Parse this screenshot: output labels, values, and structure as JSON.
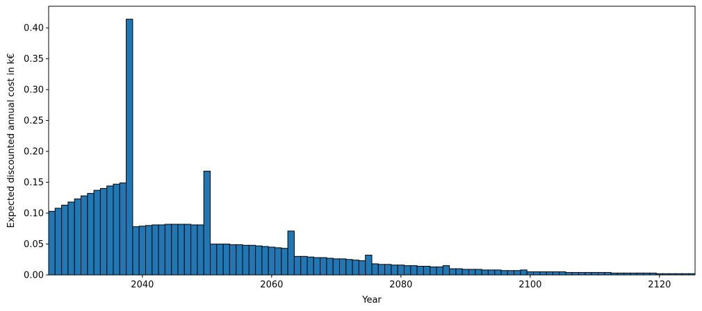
{
  "chart_data": {
    "type": "bar",
    "title": "",
    "xlabel": "Year",
    "ylabel": "Expected discounted annual cost in k€",
    "xlim": [
      2025.5,
      2125.5
    ],
    "ylim": [
      0,
      0.435
    ],
    "x_ticks": [
      2040,
      2060,
      2080,
      2100,
      2120
    ],
    "y_ticks": [
      0.0,
      0.05,
      0.1,
      0.15,
      0.2,
      0.25,
      0.3,
      0.35,
      0.4
    ],
    "grid": false,
    "bar_color": "#1f77b4",
    "edge_color": "#000000",
    "x": [
      2026,
      2027,
      2028,
      2029,
      2030,
      2031,
      2032,
      2033,
      2034,
      2035,
      2036,
      2037,
      2038,
      2039,
      2040,
      2041,
      2042,
      2043,
      2044,
      2045,
      2046,
      2047,
      2048,
      2049,
      2050,
      2051,
      2052,
      2053,
      2054,
      2055,
      2056,
      2057,
      2058,
      2059,
      2060,
      2061,
      2062,
      2063,
      2064,
      2065,
      2066,
      2067,
      2068,
      2069,
      2070,
      2071,
      2072,
      2073,
      2074,
      2075,
      2076,
      2077,
      2078,
      2079,
      2080,
      2081,
      2082,
      2083,
      2084,
      2085,
      2086,
      2087,
      2088,
      2089,
      2090,
      2091,
      2092,
      2093,
      2094,
      2095,
      2096,
      2097,
      2098,
      2099,
      2100,
      2101,
      2102,
      2103,
      2104,
      2105,
      2106,
      2107,
      2108,
      2109,
      2110,
      2111,
      2112,
      2113,
      2114,
      2115,
      2116,
      2117,
      2118,
      2119,
      2120,
      2121,
      2122,
      2123,
      2124,
      2125
    ],
    "values": [
      0.103,
      0.108,
      0.113,
      0.118,
      0.123,
      0.128,
      0.132,
      0.137,
      0.14,
      0.144,
      0.147,
      0.149,
      0.414,
      0.078,
      0.079,
      0.08,
      0.081,
      0.081,
      0.082,
      0.082,
      0.082,
      0.082,
      0.081,
      0.081,
      0.168,
      0.05,
      0.05,
      0.05,
      0.049,
      0.049,
      0.048,
      0.048,
      0.047,
      0.046,
      0.045,
      0.044,
      0.043,
      0.071,
      0.03,
      0.03,
      0.029,
      0.028,
      0.028,
      0.027,
      0.026,
      0.026,
      0.025,
      0.024,
      0.023,
      0.032,
      0.018,
      0.017,
      0.017,
      0.016,
      0.016,
      0.015,
      0.015,
      0.014,
      0.014,
      0.013,
      0.013,
      0.015,
      0.01,
      0.01,
      0.009,
      0.009,
      0.009,
      0.008,
      0.008,
      0.008,
      0.007,
      0.007,
      0.007,
      0.008,
      0.005,
      0.005,
      0.005,
      0.005,
      0.005,
      0.005,
      0.004,
      0.004,
      0.004,
      0.004,
      0.004,
      0.004,
      0.004,
      0.003,
      0.003,
      0.003,
      0.003,
      0.003,
      0.003,
      0.003,
      0.002,
      0.002,
      0.002,
      0.002,
      0.002,
      0.002
    ]
  }
}
